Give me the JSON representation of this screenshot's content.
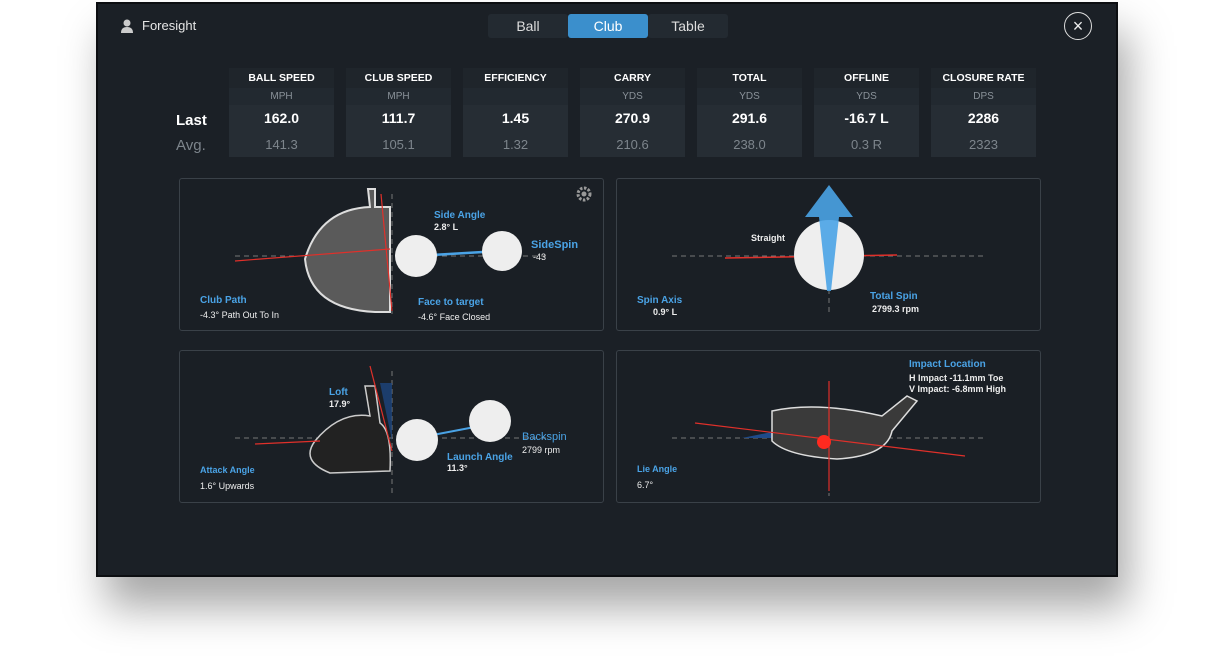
{
  "header": {
    "brand": "Foresight",
    "tabs": [
      {
        "label": "Ball"
      },
      {
        "label": "Club",
        "active": true
      },
      {
        "label": "Table"
      }
    ],
    "close": "×"
  },
  "rows": {
    "last": "Last",
    "avg": "Avg."
  },
  "stats": [
    {
      "label": "BALL SPEED",
      "unit": "MPH",
      "last": "162.0",
      "avg": "141.3"
    },
    {
      "label": "CLUB SPEED",
      "unit": "MPH",
      "last": "111.7",
      "avg": "105.1"
    },
    {
      "label": "EFFICIENCY",
      "unit": "",
      "last": "1.45",
      "avg": "1.32"
    },
    {
      "label": "CARRY",
      "unit": "YDS",
      "last": "270.9",
      "avg": "210.6"
    },
    {
      "label": "TOTAL",
      "unit": "YDS",
      "last": "291.6",
      "avg": "238.0"
    },
    {
      "label": "OFFLINE",
      "unit": "YDS",
      "last": "-16.7 L",
      "avg": "0.3 R"
    },
    {
      "label": "CLOSURE RATE",
      "unit": "DPS",
      "last": "2286",
      "avg": "2323"
    }
  ],
  "panels": {
    "top_view": {
      "side_angle_label": "Side Angle",
      "side_angle": "2.8°  L",
      "sidespin_label": "SideSpin",
      "sidespin": "-43",
      "club_path_label": "Club Path",
      "club_path": "-4.3° Path Out To In",
      "face_label": "Face to target",
      "face": "-4.6° Face Closed"
    },
    "spin": {
      "direction": "Straight",
      "spin_axis_label": "Spin Axis",
      "spin_axis": "0.9°  L",
      "total_spin_label": "Total Spin",
      "total_spin": "2799.3 rpm"
    },
    "side_view": {
      "loft_label": "Loft",
      "loft": "17.9°",
      "attack_label": "Attack Angle",
      "attack": "1.6° Upwards",
      "launch_label": "Launch Angle",
      "launch": "11.3°",
      "backspin_label": "Backspin",
      "backspin": "2799 rpm"
    },
    "impact": {
      "title": "Impact Location",
      "h": "H Impact -11.1mm Toe",
      "v": "V Impact: -6.8mm High",
      "lie_label": "Lie Angle",
      "lie": "6.7°"
    }
  },
  "colors": {
    "accent": "#3b8fcc",
    "label": "#4aa3e6",
    "line": "#e0302a"
  }
}
